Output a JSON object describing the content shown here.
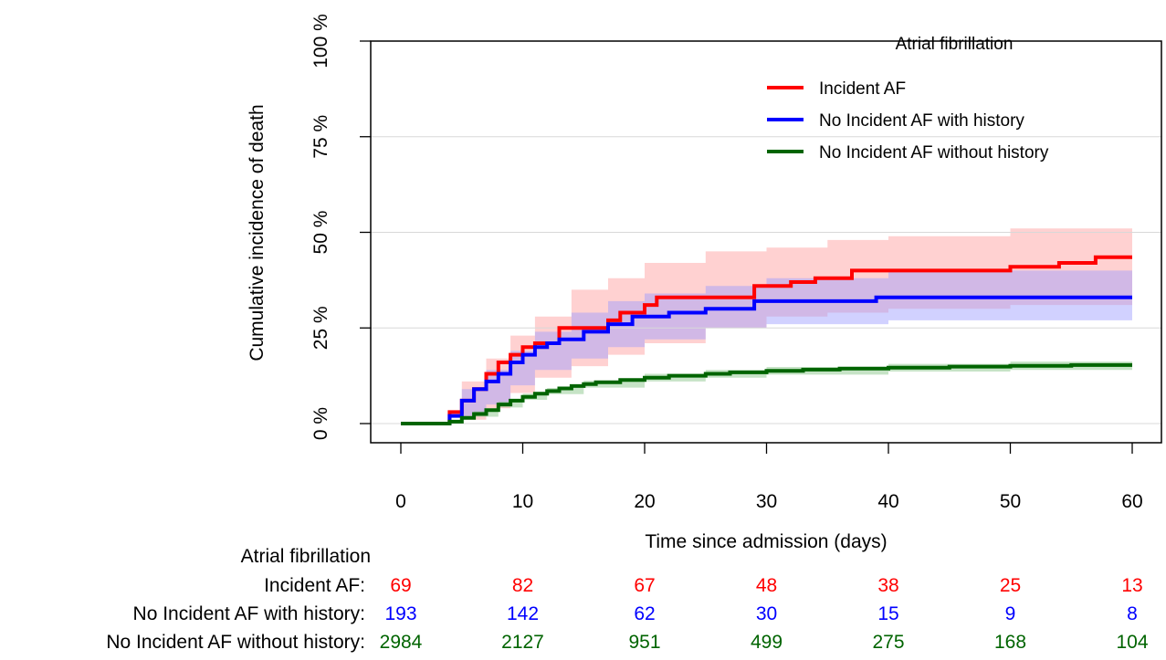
{
  "chart_data": {
    "type": "line",
    "subtype": "step",
    "ylabel": "Cumulative incidence of death",
    "xlabel": "Time since admission (days)",
    "xlim": [
      0,
      60
    ],
    "ylim": [
      0,
      100
    ],
    "x_ticks": [
      0,
      10,
      20,
      30,
      40,
      50,
      60
    ],
    "y_ticks": [
      0,
      25,
      50,
      75,
      100
    ],
    "y_tick_labels": [
      "0 %",
      "25 %",
      "50 %",
      "75 %",
      "100 %"
    ],
    "grid": "horizontal",
    "legend": {
      "title": "Atrial fibrillation",
      "placement": "top-right"
    },
    "series": [
      {
        "name": "Incident AF",
        "color": "#ff0000",
        "band_color": "#ff9999",
        "steps": [
          [
            0,
            0
          ],
          [
            4,
            0
          ],
          [
            4,
            3
          ],
          [
            5,
            3
          ],
          [
            5,
            6
          ],
          [
            6,
            6
          ],
          [
            6,
            9
          ],
          [
            7,
            9
          ],
          [
            7,
            13
          ],
          [
            8,
            13
          ],
          [
            8,
            16
          ],
          [
            9,
            16
          ],
          [
            9,
            18
          ],
          [
            10,
            18
          ],
          [
            10,
            20
          ],
          [
            11,
            20
          ],
          [
            11,
            21
          ],
          [
            13,
            21
          ],
          [
            13,
            25
          ],
          [
            17,
            25
          ],
          [
            17,
            27
          ],
          [
            18,
            27
          ],
          [
            18,
            29
          ],
          [
            20,
            29
          ],
          [
            20,
            31
          ],
          [
            21,
            31
          ],
          [
            21,
            33
          ],
          [
            29,
            33
          ],
          [
            29,
            36
          ],
          [
            32,
            36
          ],
          [
            32,
            37
          ],
          [
            34,
            37
          ],
          [
            34,
            38
          ],
          [
            37,
            38
          ],
          [
            37,
            40
          ],
          [
            50,
            40
          ],
          [
            50,
            41
          ],
          [
            54,
            41
          ],
          [
            54,
            42
          ],
          [
            57,
            42
          ],
          [
            57,
            43.5
          ],
          [
            60,
            43.5
          ]
        ],
        "ci_lower": [
          [
            0,
            0
          ],
          [
            4,
            0
          ],
          [
            5,
            1
          ],
          [
            7,
            4
          ],
          [
            9,
            8
          ],
          [
            11,
            12
          ],
          [
            14,
            15
          ],
          [
            17,
            18
          ],
          [
            20,
            21
          ],
          [
            25,
            25
          ],
          [
            30,
            28
          ],
          [
            35,
            29
          ],
          [
            40,
            30
          ],
          [
            50,
            31
          ],
          [
            60,
            33
          ]
        ],
        "ci_upper": [
          [
            0,
            0
          ],
          [
            4,
            0
          ],
          [
            5,
            11
          ],
          [
            7,
            17
          ],
          [
            9,
            23
          ],
          [
            11,
            28
          ],
          [
            14,
            35
          ],
          [
            17,
            38
          ],
          [
            20,
            42
          ],
          [
            25,
            45
          ],
          [
            30,
            46
          ],
          [
            35,
            48
          ],
          [
            40,
            49
          ],
          [
            50,
            51
          ],
          [
            60,
            53
          ]
        ]
      },
      {
        "name": "No Incident AF with history",
        "color": "#0000ff",
        "band_color": "#9999ff",
        "steps": [
          [
            0,
            0
          ],
          [
            4,
            0
          ],
          [
            4,
            2
          ],
          [
            5,
            2
          ],
          [
            5,
            6
          ],
          [
            6,
            6
          ],
          [
            6,
            9
          ],
          [
            7,
            9
          ],
          [
            7,
            11
          ],
          [
            8,
            11
          ],
          [
            8,
            13
          ],
          [
            9,
            13
          ],
          [
            9,
            16
          ],
          [
            10,
            16
          ],
          [
            10,
            18
          ],
          [
            11,
            18
          ],
          [
            11,
            20
          ],
          [
            12,
            20
          ],
          [
            12,
            21
          ],
          [
            13,
            21
          ],
          [
            13,
            22
          ],
          [
            15,
            22
          ],
          [
            15,
            24
          ],
          [
            17,
            24
          ],
          [
            17,
            26
          ],
          [
            19,
            26
          ],
          [
            19,
            28
          ],
          [
            22,
            28
          ],
          [
            22,
            29
          ],
          [
            25,
            29
          ],
          [
            25,
            30
          ],
          [
            29,
            30
          ],
          [
            29,
            32
          ],
          [
            39,
            32
          ],
          [
            39,
            33
          ],
          [
            60,
            33
          ]
        ],
        "ci_lower": [
          [
            0,
            0
          ],
          [
            4,
            0
          ],
          [
            5,
            2
          ],
          [
            7,
            5
          ],
          [
            9,
            10
          ],
          [
            11,
            14
          ],
          [
            14,
            17
          ],
          [
            17,
            20
          ],
          [
            20,
            22
          ],
          [
            25,
            25
          ],
          [
            30,
            26
          ],
          [
            40,
            27
          ],
          [
            60,
            27
          ]
        ],
        "ci_upper": [
          [
            0,
            0
          ],
          [
            4,
            0
          ],
          [
            5,
            9
          ],
          [
            7,
            14
          ],
          [
            9,
            19
          ],
          [
            11,
            24
          ],
          [
            14,
            29
          ],
          [
            17,
            32
          ],
          [
            20,
            34
          ],
          [
            25,
            36
          ],
          [
            30,
            38
          ],
          [
            40,
            40
          ],
          [
            60,
            40
          ]
        ]
      },
      {
        "name": "No Incident AF without history",
        "color": "#006400",
        "band_color": "#80c080",
        "steps": [
          [
            0,
            0
          ],
          [
            4,
            0
          ],
          [
            4,
            0.5
          ],
          [
            5,
            0.5
          ],
          [
            5,
            1.5
          ],
          [
            6,
            1.5
          ],
          [
            6,
            2.5
          ],
          [
            7,
            2.5
          ],
          [
            7,
            3.5
          ],
          [
            8,
            3.5
          ],
          [
            8,
            5
          ],
          [
            9,
            5
          ],
          [
            9,
            6
          ],
          [
            10,
            6
          ],
          [
            10,
            7
          ],
          [
            11,
            7
          ],
          [
            11,
            7.8
          ],
          [
            12,
            7.8
          ],
          [
            12,
            8.5
          ],
          [
            13,
            8.5
          ],
          [
            13,
            9.2
          ],
          [
            14,
            9.2
          ],
          [
            14,
            9.8
          ],
          [
            15,
            9.8
          ],
          [
            15,
            10.3
          ],
          [
            16,
            10.3
          ],
          [
            16,
            10.8
          ],
          [
            18,
            10.8
          ],
          [
            18,
            11.4
          ],
          [
            20,
            11.4
          ],
          [
            20,
            12
          ],
          [
            22,
            12
          ],
          [
            22,
            12.5
          ],
          [
            25,
            12.5
          ],
          [
            25,
            13
          ],
          [
            27,
            13
          ],
          [
            27,
            13.4
          ],
          [
            30,
            13.4
          ],
          [
            30,
            13.8
          ],
          [
            33,
            13.8
          ],
          [
            33,
            14.1
          ],
          [
            36,
            14.1
          ],
          [
            36,
            14.4
          ],
          [
            40,
            14.4
          ],
          [
            40,
            14.6
          ],
          [
            45,
            14.6
          ],
          [
            45,
            14.9
          ],
          [
            50,
            14.9
          ],
          [
            50,
            15.1
          ],
          [
            55,
            15.1
          ],
          [
            55,
            15.3
          ],
          [
            60,
            15.3
          ]
        ],
        "ci_lower": [
          [
            0,
            0
          ],
          [
            4,
            0
          ],
          [
            6,
            1.8
          ],
          [
            8,
            4.2
          ],
          [
            10,
            6.2
          ],
          [
            12,
            7.7
          ],
          [
            15,
            9.4
          ],
          [
            20,
            11
          ],
          [
            25,
            12
          ],
          [
            30,
            12.8
          ],
          [
            40,
            13.6
          ],
          [
            50,
            14
          ],
          [
            60,
            14.2
          ]
        ],
        "ci_upper": [
          [
            0,
            0
          ],
          [
            4,
            0
          ],
          [
            6,
            3.2
          ],
          [
            8,
            5.8
          ],
          [
            10,
            7.8
          ],
          [
            12,
            9.3
          ],
          [
            15,
            11.2
          ],
          [
            20,
            13
          ],
          [
            25,
            14
          ],
          [
            30,
            14.8
          ],
          [
            40,
            15.6
          ],
          [
            50,
            16.2
          ],
          [
            60,
            16.6
          ]
        ]
      }
    ],
    "risk_table": {
      "title": "Atrial fibrillation",
      "times": [
        0,
        10,
        20,
        30,
        40,
        50,
        60
      ],
      "rows": [
        {
          "label": "Incident AF:",
          "color": "#ff0000",
          "counts": [
            "69",
            "82",
            "67",
            "48",
            "38",
            "25",
            "13"
          ]
        },
        {
          "label": "No Incident AF with history:",
          "color": "#0000ff",
          "counts": [
            "193",
            "142",
            "62",
            "30",
            "15",
            "9",
            "8"
          ]
        },
        {
          "label": "No Incident AF without history:",
          "color": "#006400",
          "counts": [
            "2984",
            "2127",
            "951",
            "499",
            "275",
            "168",
            "104"
          ]
        }
      ]
    }
  }
}
